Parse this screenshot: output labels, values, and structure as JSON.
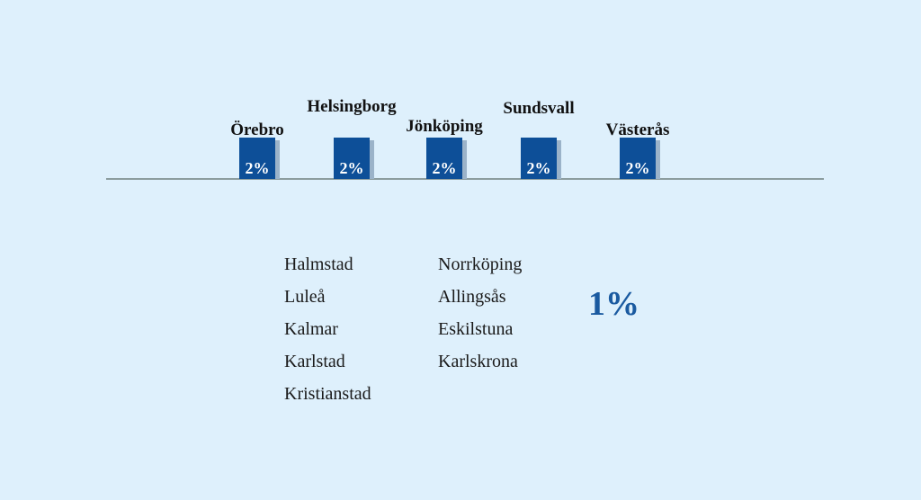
{
  "chart_data": {
    "type": "bar",
    "categories": [
      "Örebro",
      "Helsingborg",
      "Jönköping",
      "Sundsvall",
      "Västerås"
    ],
    "values": [
      2,
      2,
      2,
      2,
      2
    ],
    "value_labels": [
      "2%",
      "2%",
      "2%",
      "2%",
      "2%"
    ],
    "title": "",
    "xlabel": "",
    "ylabel": "",
    "bar_color": "#0d4f98",
    "shadow_color": "#9bb3c9",
    "baseline_color": "#5a6a66",
    "grid": false
  },
  "group": {
    "column1": [
      "Halmstad",
      "Luleå",
      "Kalmar",
      "Karlstad",
      "Kristianstad"
    ],
    "column2": [
      "Norrköping",
      "Allingsås",
      "Eskilstuna",
      "Karlskrona"
    ],
    "value": "1%"
  }
}
